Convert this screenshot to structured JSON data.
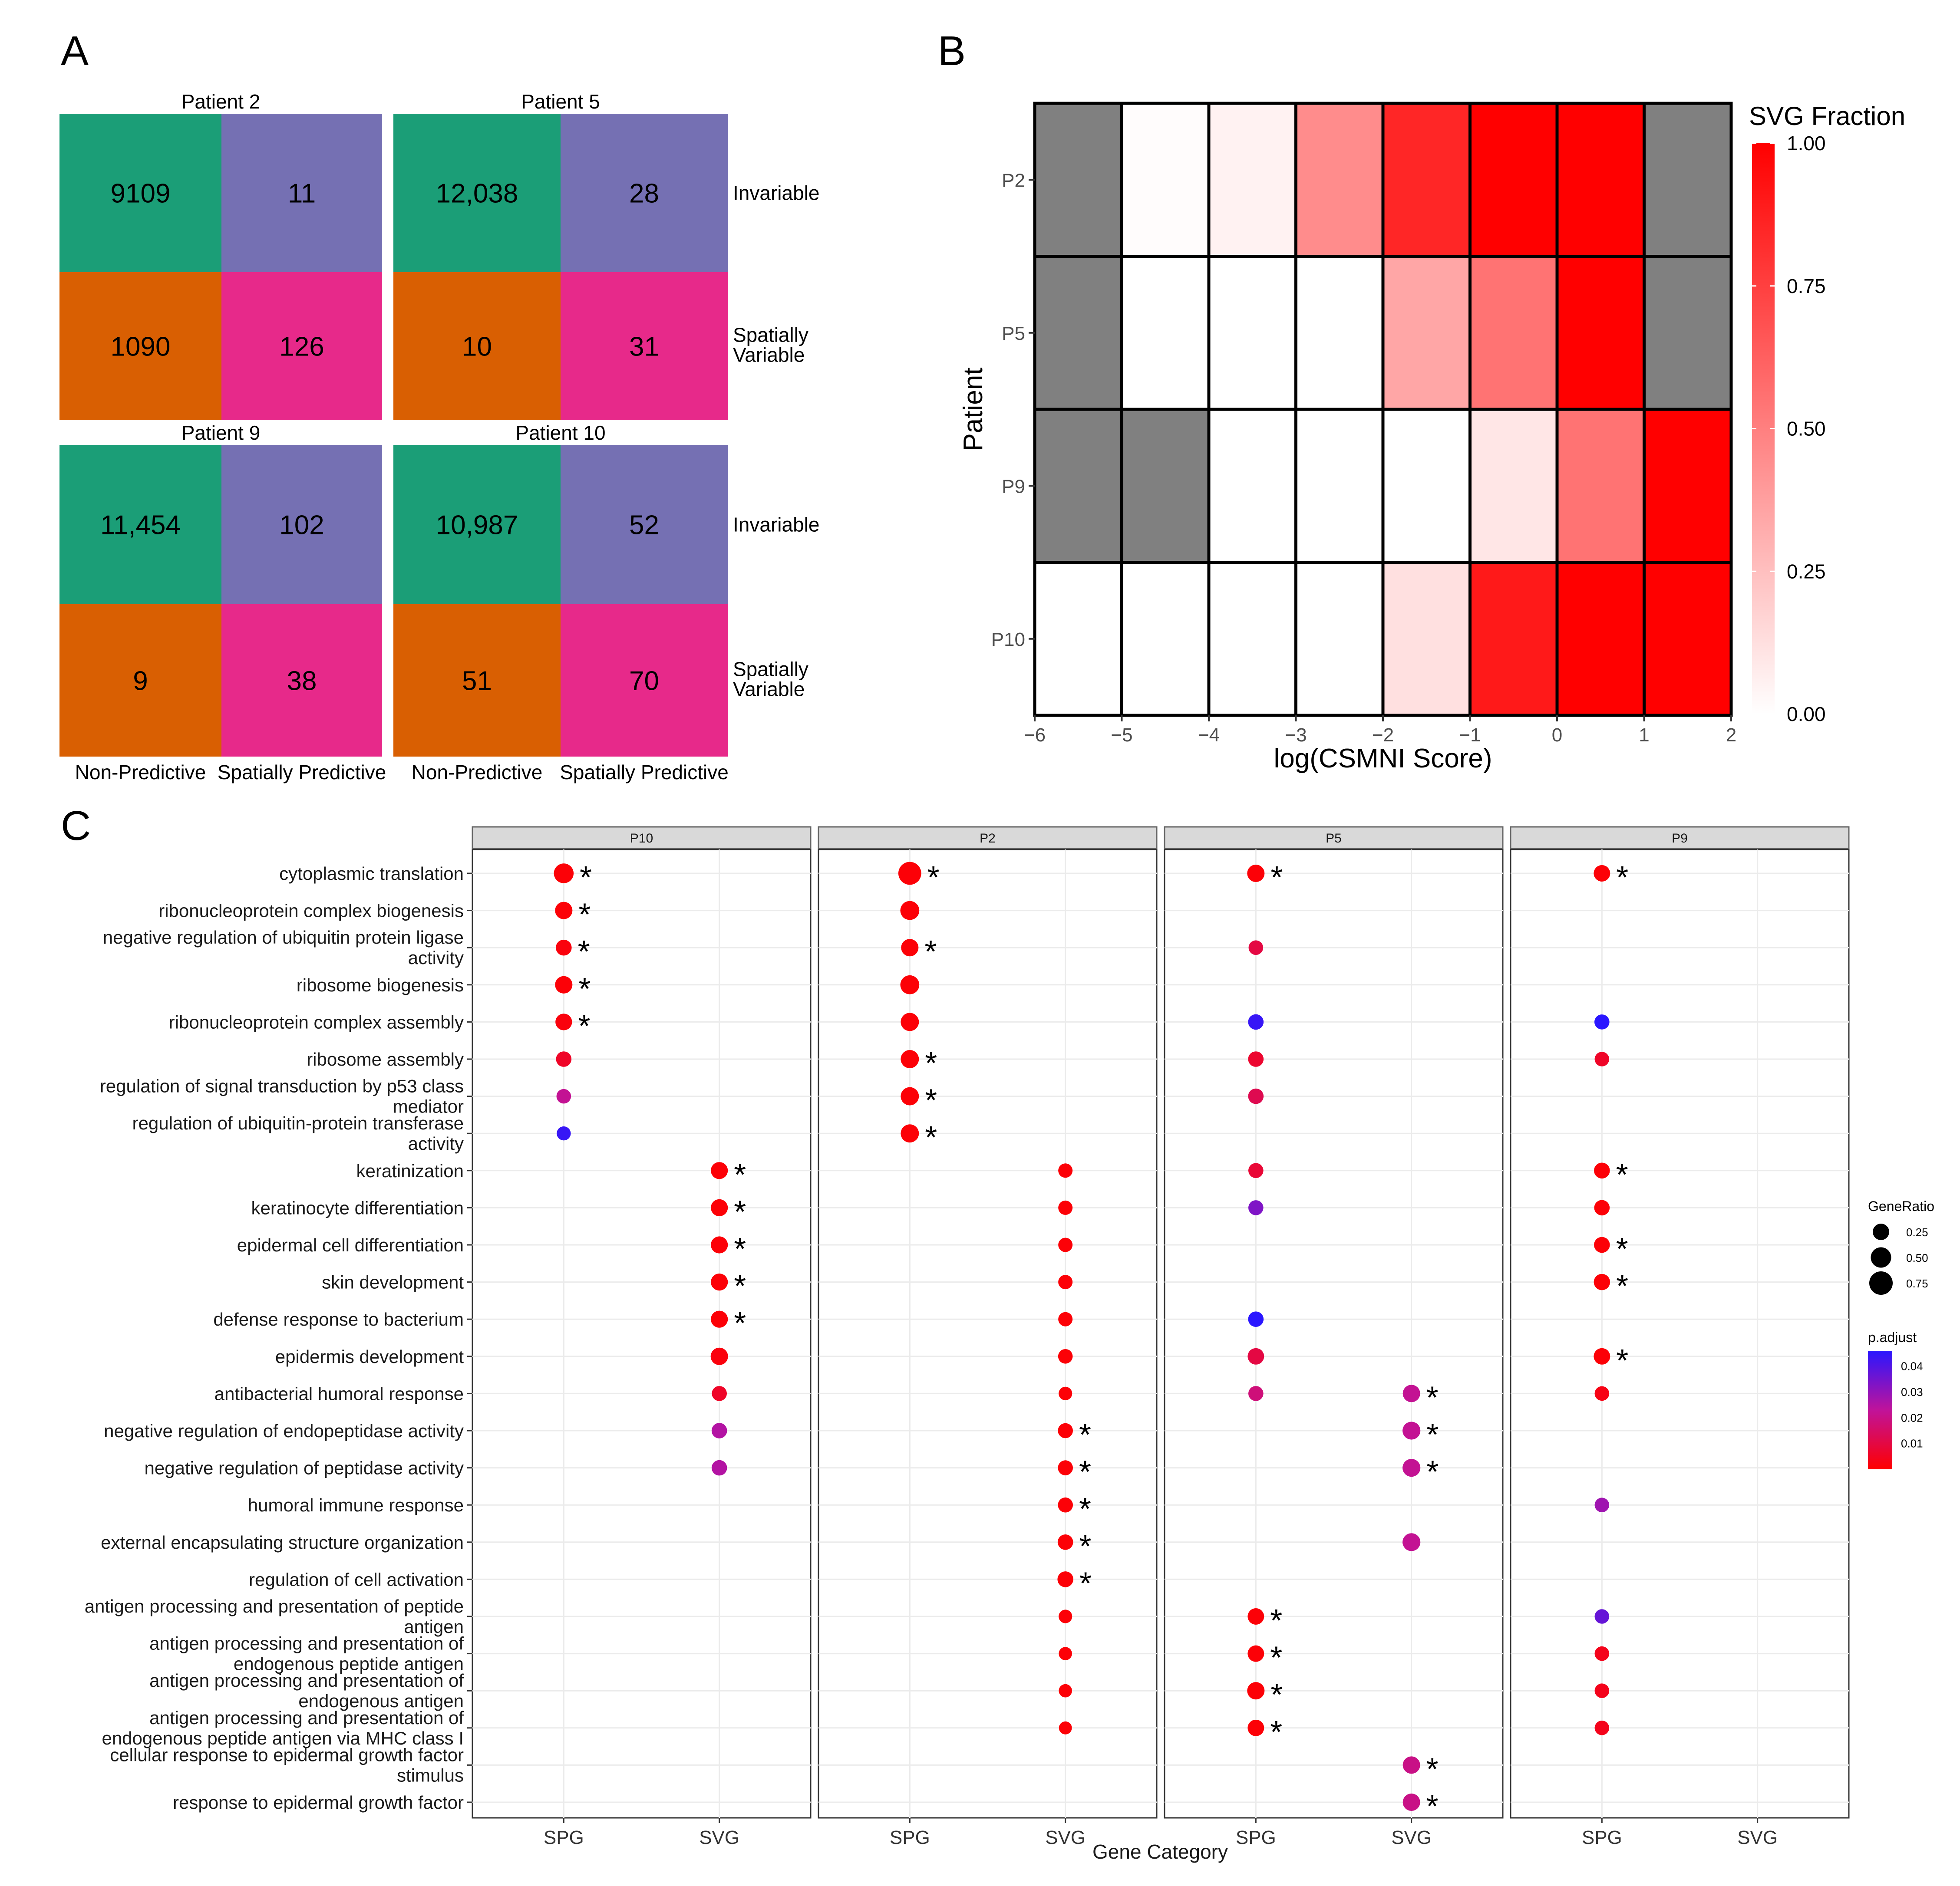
{
  "panel_labels": {
    "a": "A",
    "b": "B",
    "c": "C"
  },
  "colors": {
    "np_inv": "#1b9e77",
    "sp_inv": "#7570b3",
    "np_var": "#d95f02",
    "sp_var": "#e7298a",
    "heat_na": "#808080",
    "heat_high": "#ff0000",
    "heat_low": "#ffffff",
    "pad_high": "#ff0000",
    "pad_low": "#0000ff",
    "strip_bg": "#d9d9d9"
  },
  "chart_data": [
    {
      "type": "table",
      "id": "A",
      "row_labels": [
        "Invariable",
        "Spatially Variable"
      ],
      "col_labels": [
        "Non-Predictive",
        "Spatially Predictive"
      ],
      "facets": [
        {
          "title": "Patient 2",
          "values": [
            [
              "9109",
              "11"
            ],
            [
              "1090",
              "126"
            ]
          ]
        },
        {
          "title": "Patient 5",
          "values": [
            [
              "12,038",
              "28"
            ],
            [
              "10",
              "31"
            ]
          ]
        },
        {
          "title": "Patient 9",
          "values": [
            [
              "11,454",
              "102"
            ],
            [
              "9",
              "38"
            ]
          ]
        },
        {
          "title": "Patient 10",
          "values": [
            [
              "10,987",
              "52"
            ],
            [
              "51",
              "70"
            ]
          ]
        }
      ]
    },
    {
      "type": "heatmap",
      "id": "B",
      "xlabel": "log(CSMNI Score)",
      "ylabel": "Patient",
      "x_ticks": [
        "−6",
        "−5",
        "−4",
        "−3",
        "−2",
        "−1",
        "0",
        "1",
        "2"
      ],
      "xlim": [
        -6,
        2
      ],
      "rows": [
        "P2",
        "P5",
        "P9",
        "P10"
      ],
      "values": [
        [
          null,
          0.01,
          0.05,
          0.45,
          0.85,
          1.0,
          1.0,
          null
        ],
        [
          null,
          0.0,
          0.0,
          0.0,
          0.35,
          0.55,
          1.0,
          null
        ],
        [
          null,
          null,
          0.0,
          0.0,
          0.0,
          0.1,
          0.55,
          1.0
        ],
        [
          0.0,
          0.0,
          0.0,
          0.0,
          0.12,
          0.9,
          1.0,
          1.0
        ]
      ],
      "legend_title": "SVG Fraction",
      "legend_ticks": [
        "1.00",
        "0.75",
        "0.50",
        "0.25",
        "0.00"
      ],
      "range": [
        0,
        1
      ]
    },
    {
      "type": "scatter",
      "id": "C",
      "xlabel": "Gene Category",
      "x_categories": [
        "SPG",
        "SVG"
      ],
      "facets": [
        "P10",
        "P2",
        "P5",
        "P9"
      ],
      "terms": [
        [
          "cytoplasmic translation"
        ],
        [
          "ribonucleoprotein complex biogenesis"
        ],
        [
          "negative regulation of ubiquitin protein ligase",
          "activity"
        ],
        [
          "ribosome biogenesis"
        ],
        [
          "ribonucleoprotein complex assembly"
        ],
        [
          "ribosome assembly"
        ],
        [
          "regulation of signal transduction by p53 class",
          "mediator"
        ],
        [
          "regulation of ubiquitin-protein transferase",
          "activity"
        ],
        [
          "keratinization"
        ],
        [
          "keratinocyte differentiation"
        ],
        [
          "epidermal cell differentiation"
        ],
        [
          "skin development"
        ],
        [
          "defense response to bacterium"
        ],
        [
          "epidermis development"
        ],
        [
          "antibacterial humoral response"
        ],
        [
          "negative regulation of endopeptidase activity"
        ],
        [
          "negative regulation of peptidase activity"
        ],
        [
          "humoral immune response"
        ],
        [
          "external encapsulating structure organization"
        ],
        [
          "regulation of cell activation"
        ],
        [
          "antigen processing and presentation of peptide",
          "antigen"
        ],
        [
          "antigen processing and presentation of",
          "endogenous peptide antigen"
        ],
        [
          "antigen processing and presentation of",
          "endogenous antigen"
        ],
        [
          "antigen processing and presentation of",
          "endogenous peptide antigen via MHC class I"
        ],
        [
          "cellular response to epidermal growth factor",
          "stimulus"
        ],
        [
          "response to epidermal growth factor"
        ]
      ],
      "points": [
        {
          "facet": "P10",
          "cat": "SPG",
          "term": 0,
          "ratio": 0.45,
          "padj": 0.001,
          "sig": true
        },
        {
          "facet": "P10",
          "cat": "SPG",
          "term": 1,
          "ratio": 0.3,
          "padj": 0.001,
          "sig": true
        },
        {
          "facet": "P10",
          "cat": "SPG",
          "term": 2,
          "ratio": 0.22,
          "padj": 0.002,
          "sig": true
        },
        {
          "facet": "P10",
          "cat": "SPG",
          "term": 3,
          "ratio": 0.3,
          "padj": 0.001,
          "sig": true
        },
        {
          "facet": "P10",
          "cat": "SPG",
          "term": 4,
          "ratio": 0.26,
          "padj": 0.002,
          "sig": true
        },
        {
          "facet": "P10",
          "cat": "SPG",
          "term": 5,
          "ratio": 0.2,
          "padj": 0.006,
          "sig": false
        },
        {
          "facet": "P10",
          "cat": "SPG",
          "term": 6,
          "ratio": 0.16,
          "padj": 0.022,
          "sig": false
        },
        {
          "facet": "P10",
          "cat": "SPG",
          "term": 7,
          "ratio": 0.14,
          "padj": 0.044,
          "sig": false
        },
        {
          "facet": "P10",
          "cat": "SVG",
          "term": 8,
          "ratio": 0.28,
          "padj": 0.001,
          "sig": true
        },
        {
          "facet": "P10",
          "cat": "SVG",
          "term": 9,
          "ratio": 0.28,
          "padj": 0.001,
          "sig": true
        },
        {
          "facet": "P10",
          "cat": "SVG",
          "term": 10,
          "ratio": 0.28,
          "padj": 0.001,
          "sig": true
        },
        {
          "facet": "P10",
          "cat": "SVG",
          "term": 11,
          "ratio": 0.28,
          "padj": 0.001,
          "sig": true
        },
        {
          "facet": "P10",
          "cat": "SVG",
          "term": 12,
          "ratio": 0.28,
          "padj": 0.001,
          "sig": true
        },
        {
          "facet": "P10",
          "cat": "SVG",
          "term": 13,
          "ratio": 0.3,
          "padj": 0.002,
          "sig": false
        },
        {
          "facet": "P10",
          "cat": "SVG",
          "term": 14,
          "ratio": 0.18,
          "padj": 0.006,
          "sig": false
        },
        {
          "facet": "P10",
          "cat": "SVG",
          "term": 15,
          "ratio": 0.2,
          "padj": 0.025,
          "sig": false
        },
        {
          "facet": "P10",
          "cat": "SVG",
          "term": 16,
          "ratio": 0.2,
          "padj": 0.025,
          "sig": false
        },
        {
          "facet": "P2",
          "cat": "SPG",
          "term": 0,
          "ratio": 0.7,
          "padj": 0.001,
          "sig": true
        },
        {
          "facet": "P2",
          "cat": "SPG",
          "term": 1,
          "ratio": 0.4,
          "padj": 0.001,
          "sig": false
        },
        {
          "facet": "P2",
          "cat": "SPG",
          "term": 2,
          "ratio": 0.3,
          "padj": 0.001,
          "sig": true
        },
        {
          "facet": "P2",
          "cat": "SPG",
          "term": 3,
          "ratio": 0.4,
          "padj": 0.001,
          "sig": false
        },
        {
          "facet": "P2",
          "cat": "SPG",
          "term": 4,
          "ratio": 0.35,
          "padj": 0.001,
          "sig": false
        },
        {
          "facet": "P2",
          "cat": "SPG",
          "term": 5,
          "ratio": 0.35,
          "padj": 0.001,
          "sig": true
        },
        {
          "facet": "P2",
          "cat": "SPG",
          "term": 6,
          "ratio": 0.35,
          "padj": 0.001,
          "sig": true
        },
        {
          "facet": "P2",
          "cat": "SPG",
          "term": 7,
          "ratio": 0.35,
          "padj": 0.001,
          "sig": true
        },
        {
          "facet": "P2",
          "cat": "SVG",
          "term": 8,
          "ratio": 0.15,
          "padj": 0.001,
          "sig": false
        },
        {
          "facet": "P2",
          "cat": "SVG",
          "term": 9,
          "ratio": 0.15,
          "padj": 0.001,
          "sig": false
        },
        {
          "facet": "P2",
          "cat": "SVG",
          "term": 10,
          "ratio": 0.15,
          "padj": 0.001,
          "sig": false
        },
        {
          "facet": "P2",
          "cat": "SVG",
          "term": 11,
          "ratio": 0.15,
          "padj": 0.001,
          "sig": false
        },
        {
          "facet": "P2",
          "cat": "SVG",
          "term": 12,
          "ratio": 0.15,
          "padj": 0.001,
          "sig": false
        },
        {
          "facet": "P2",
          "cat": "SVG",
          "term": 13,
          "ratio": 0.16,
          "padj": 0.001,
          "sig": false
        },
        {
          "facet": "P2",
          "cat": "SVG",
          "term": 14,
          "ratio": 0.12,
          "padj": 0.001,
          "sig": false
        },
        {
          "facet": "P2",
          "cat": "SVG",
          "term": 15,
          "ratio": 0.18,
          "padj": 0.001,
          "sig": true
        },
        {
          "facet": "P2",
          "cat": "SVG",
          "term": 16,
          "ratio": 0.18,
          "padj": 0.001,
          "sig": true
        },
        {
          "facet": "P2",
          "cat": "SVG",
          "term": 17,
          "ratio": 0.18,
          "padj": 0.001,
          "sig": true
        },
        {
          "facet": "P2",
          "cat": "SVG",
          "term": 18,
          "ratio": 0.2,
          "padj": 0.001,
          "sig": true
        },
        {
          "facet": "P2",
          "cat": "SVG",
          "term": 19,
          "ratio": 0.22,
          "padj": 0.001,
          "sig": true
        },
        {
          "facet": "P2",
          "cat": "SVG",
          "term": 20,
          "ratio": 0.12,
          "padj": 0.001,
          "sig": false
        },
        {
          "facet": "P2",
          "cat": "SVG",
          "term": 21,
          "ratio": 0.11,
          "padj": 0.001,
          "sig": false
        },
        {
          "facet": "P2",
          "cat": "SVG",
          "term": 22,
          "ratio": 0.11,
          "padj": 0.001,
          "sig": false
        },
        {
          "facet": "P2",
          "cat": "SVG",
          "term": 23,
          "ratio": 0.1,
          "padj": 0.001,
          "sig": false
        },
        {
          "facet": "P5",
          "cat": "SPG",
          "term": 0,
          "ratio": 0.3,
          "padj": 0.001,
          "sig": true
        },
        {
          "facet": "P5",
          "cat": "SPG",
          "term": 2,
          "ratio": 0.16,
          "padj": 0.01,
          "sig": false
        },
        {
          "facet": "P5",
          "cat": "SPG",
          "term": 4,
          "ratio": 0.2,
          "padj": 0.044,
          "sig": false
        },
        {
          "facet": "P5",
          "cat": "SPG",
          "term": 5,
          "ratio": 0.2,
          "padj": 0.007,
          "sig": false
        },
        {
          "facet": "P5",
          "cat": "SPG",
          "term": 6,
          "ratio": 0.2,
          "padj": 0.012,
          "sig": false
        },
        {
          "facet": "P5",
          "cat": "SPG",
          "term": 8,
          "ratio": 0.18,
          "padj": 0.008,
          "sig": false
        },
        {
          "facet": "P5",
          "cat": "SPG",
          "term": 9,
          "ratio": 0.18,
          "padj": 0.033,
          "sig": false
        },
        {
          "facet": "P5",
          "cat": "SPG",
          "term": 12,
          "ratio": 0.2,
          "padj": 0.046,
          "sig": false
        },
        {
          "facet": "P5",
          "cat": "SPG",
          "term": 13,
          "ratio": 0.25,
          "padj": 0.01,
          "sig": false
        },
        {
          "facet": "P5",
          "cat": "SPG",
          "term": 14,
          "ratio": 0.18,
          "padj": 0.018,
          "sig": false
        },
        {
          "facet": "P5",
          "cat": "SPG",
          "term": 20,
          "ratio": 0.25,
          "padj": 0.001,
          "sig": true
        },
        {
          "facet": "P5",
          "cat": "SPG",
          "term": 21,
          "ratio": 0.25,
          "padj": 0.001,
          "sig": true
        },
        {
          "facet": "P5",
          "cat": "SPG",
          "term": 22,
          "ratio": 0.3,
          "padj": 0.001,
          "sig": true
        },
        {
          "facet": "P5",
          "cat": "SPG",
          "term": 23,
          "ratio": 0.25,
          "padj": 0.001,
          "sig": true
        },
        {
          "facet": "P5",
          "cat": "SVG",
          "term": 14,
          "ratio": 0.3,
          "padj": 0.022,
          "sig": true
        },
        {
          "facet": "P5",
          "cat": "SVG",
          "term": 15,
          "ratio": 0.33,
          "padj": 0.022,
          "sig": true
        },
        {
          "facet": "P5",
          "cat": "SVG",
          "term": 16,
          "ratio": 0.33,
          "padj": 0.022,
          "sig": true
        },
        {
          "facet": "P5",
          "cat": "SVG",
          "term": 18,
          "ratio": 0.33,
          "padj": 0.022,
          "sig": false
        },
        {
          "facet": "P5",
          "cat": "SVG",
          "term": 24,
          "ratio": 0.3,
          "padj": 0.02,
          "sig": true
        },
        {
          "facet": "P5",
          "cat": "SVG",
          "term": 25,
          "ratio": 0.3,
          "padj": 0.02,
          "sig": true
        },
        {
          "facet": "P9",
          "cat": "SPG",
          "term": 0,
          "ratio": 0.25,
          "padj": 0.001,
          "sig": true
        },
        {
          "facet": "P9",
          "cat": "SPG",
          "term": 4,
          "ratio": 0.18,
          "padj": 0.046,
          "sig": false
        },
        {
          "facet": "P9",
          "cat": "SPG",
          "term": 5,
          "ratio": 0.16,
          "padj": 0.006,
          "sig": false
        },
        {
          "facet": "P9",
          "cat": "SPG",
          "term": 8,
          "ratio": 0.22,
          "padj": 0.001,
          "sig": true
        },
        {
          "facet": "P9",
          "cat": "SPG",
          "term": 9,
          "ratio": 0.2,
          "padj": 0.001,
          "sig": false
        },
        {
          "facet": "P9",
          "cat": "SPG",
          "term": 10,
          "ratio": 0.22,
          "padj": 0.001,
          "sig": true
        },
        {
          "facet": "P9",
          "cat": "SPG",
          "term": 11,
          "ratio": 0.24,
          "padj": 0.001,
          "sig": true
        },
        {
          "facet": "P9",
          "cat": "SPG",
          "term": 13,
          "ratio": 0.25,
          "padj": 0.001,
          "sig": true
        },
        {
          "facet": "P9",
          "cat": "SPG",
          "term": 14,
          "ratio": 0.16,
          "padj": 0.003,
          "sig": false
        },
        {
          "facet": "P9",
          "cat": "SPG",
          "term": 17,
          "ratio": 0.16,
          "padj": 0.028,
          "sig": false
        },
        {
          "facet": "P9",
          "cat": "SPG",
          "term": 20,
          "ratio": 0.16,
          "padj": 0.037,
          "sig": false
        },
        {
          "facet": "P9",
          "cat": "SPG",
          "term": 21,
          "ratio": 0.16,
          "padj": 0.004,
          "sig": false
        },
        {
          "facet": "P9",
          "cat": "SPG",
          "term": 22,
          "ratio": 0.16,
          "padj": 0.004,
          "sig": false
        },
        {
          "facet": "P9",
          "cat": "SPG",
          "term": 23,
          "ratio": 0.16,
          "padj": 0.004,
          "sig": false
        }
      ],
      "sig_marker": "*",
      "size_legend": {
        "title": "GeneRatio",
        "values": [
          0.25,
          0.5,
          0.75
        ],
        "labels": [
          "0.25",
          "0.50",
          "0.75"
        ]
      },
      "color_legend": {
        "title": "p.adjust",
        "values": [
          0.04,
          0.03,
          0.02,
          0.01
        ],
        "labels": [
          "0.04",
          "0.03",
          "0.02",
          "0.01"
        ],
        "range": [
          0.0,
          0.046
        ]
      }
    }
  ]
}
